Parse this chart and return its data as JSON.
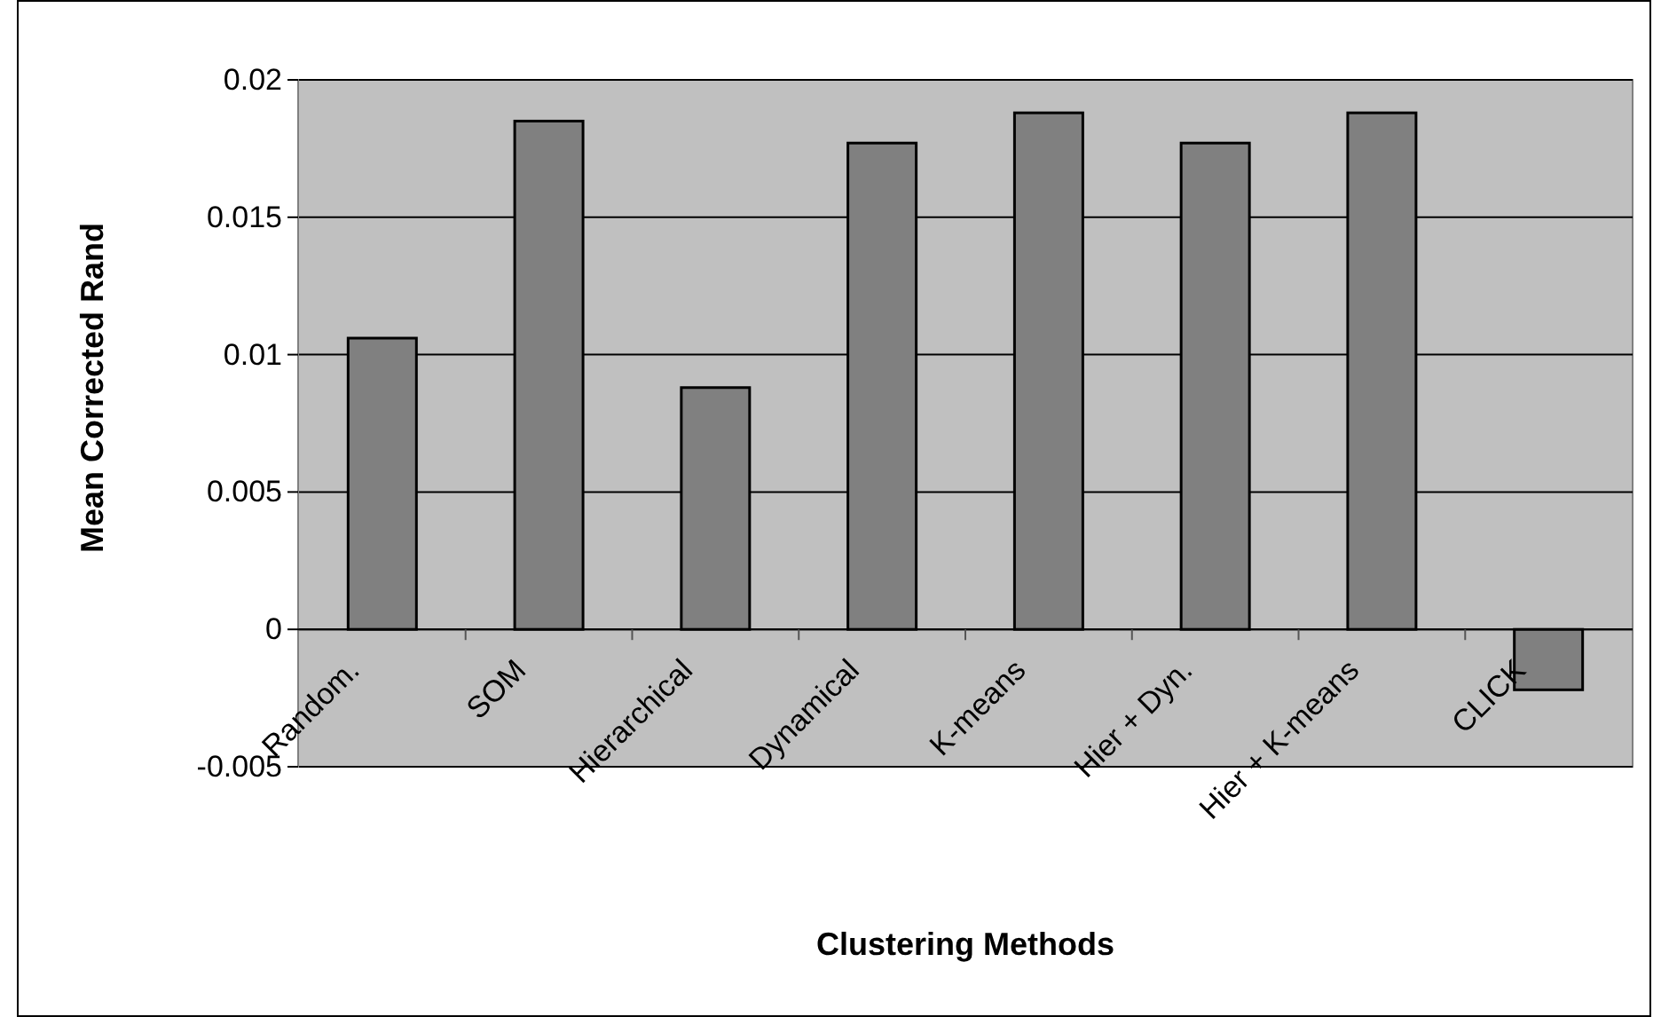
{
  "chart_data": {
    "type": "bar",
    "xlabel": "Clustering Methods",
    "ylabel": "Mean Corrected Rand",
    "categories": [
      "Random.",
      "SOM",
      "Hierarchical",
      "Dynamical",
      "K-means",
      "Hier + Dyn.",
      "Hier + K-means",
      "CLICK"
    ],
    "values": [
      0.0106,
      0.0185,
      0.0088,
      0.0177,
      0.0188,
      0.0177,
      0.0188,
      -0.0022
    ],
    "color": "#808080",
    "ylim": [
      -0.005,
      0.02
    ],
    "yticks": [
      -0.005,
      0,
      0.005,
      0.01,
      0.015,
      0.02
    ],
    "grid": "y"
  }
}
